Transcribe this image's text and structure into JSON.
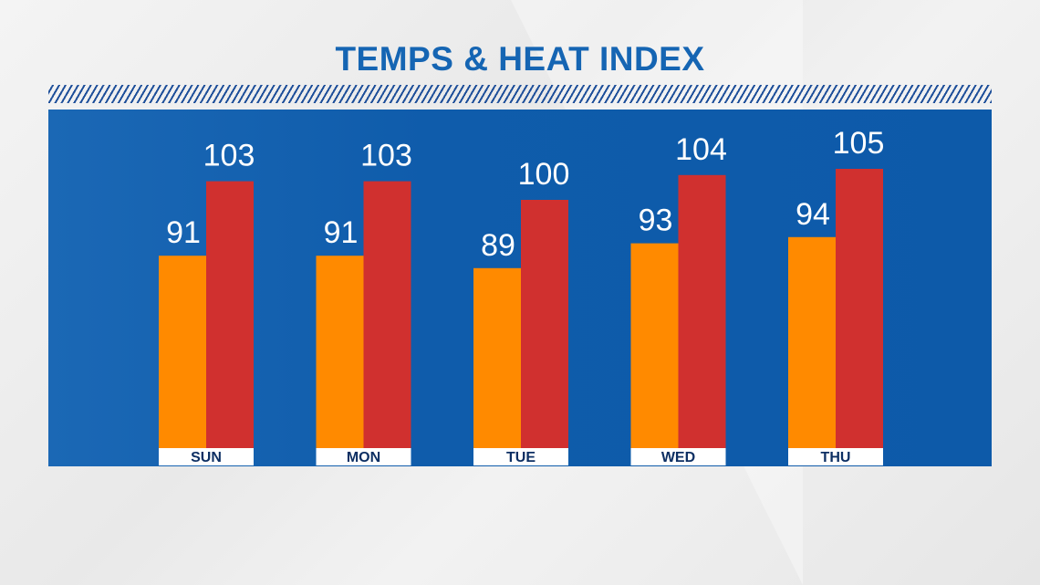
{
  "chart_data": {
    "type": "bar",
    "title": "TEMPS & HEAT INDEX",
    "categories": [
      "SUN",
      "MON",
      "TUE",
      "WED",
      "THU"
    ],
    "series": [
      {
        "values": [
          91,
          91,
          89,
          93,
          94
        ],
        "color": "#ff8a00"
      },
      {
        "values": [
          103,
          103,
          100,
          104,
          105
        ],
        "color": "#d0302f"
      }
    ],
    "ylim": [
      60,
      110
    ],
    "grid": false,
    "legend": "none",
    "panel_color": "#0d5aa9",
    "label_band_color": "#ffffff",
    "label_text_color": "#0d2f63",
    "value_label_color": "#ffffff",
    "title_color": "#1565b3"
  }
}
